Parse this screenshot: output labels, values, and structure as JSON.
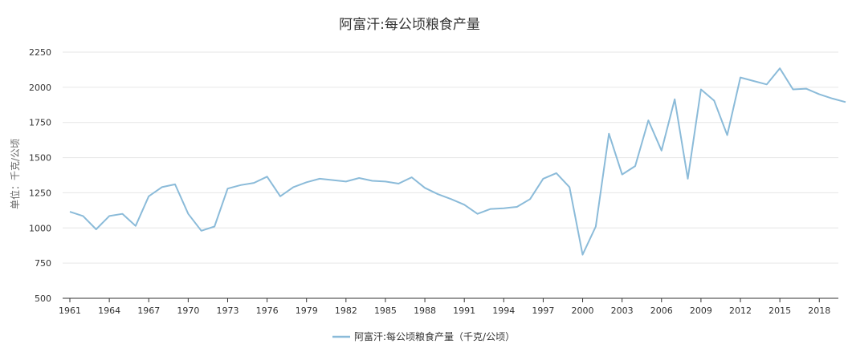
{
  "chart_data": {
    "type": "line",
    "title": "阿富汗:每公顷粮食产量",
    "ylabel": "单位：千克/公顷",
    "xlabel": "",
    "ylim": [
      500,
      2250
    ],
    "yticks": [
      500,
      750,
      1000,
      1250,
      1500,
      1750,
      2000,
      2250
    ],
    "xlim": [
      1961,
      2020
    ],
    "xticks": [
      1961,
      1964,
      1967,
      1970,
      1973,
      1976,
      1979,
      1982,
      1985,
      1988,
      1991,
      1994,
      1997,
      2000,
      2003,
      2006,
      2009,
      2012,
      2015,
      2018
    ],
    "grid": true,
    "legend_position": "bottom-center",
    "color": "#8bbbd9",
    "series": [
      {
        "name": "阿富汗:每公顷粮食产量（千克/公顷）",
        "x": [
          1961,
          1962,
          1963,
          1964,
          1965,
          1966,
          1967,
          1968,
          1969,
          1970,
          1971,
          1972,
          1973,
          1974,
          1975,
          1976,
          1977,
          1978,
          1979,
          1980,
          1981,
          1982,
          1983,
          1984,
          1985,
          1986,
          1987,
          1988,
          1989,
          1990,
          1991,
          1992,
          1993,
          1994,
          1995,
          1996,
          1997,
          1998,
          1999,
          2000,
          2001,
          2002,
          2003,
          2004,
          2005,
          2006,
          2007,
          2008,
          2009,
          2010,
          2011,
          2012,
          2013,
          2014,
          2015,
          2016,
          2017,
          2018,
          2019,
          2020
        ],
        "values": [
          1115,
          1085,
          990,
          1085,
          1100,
          1015,
          1225,
          1290,
          1310,
          1100,
          980,
          1010,
          1280,
          1305,
          1320,
          1365,
          1225,
          1290,
          1325,
          1350,
          1340,
          1330,
          1355,
          1335,
          1330,
          1315,
          1360,
          1285,
          1240,
          1205,
          1165,
          1100,
          1135,
          1140,
          1150,
          1205,
          1350,
          1390,
          1290,
          810,
          1010,
          1670,
          1380,
          1440,
          1765,
          1550,
          1915,
          1350,
          1985,
          1905,
          1660,
          2070,
          2045,
          2020,
          2135,
          1985,
          1990,
          1950,
          1920,
          1895
        ]
      }
    ]
  }
}
